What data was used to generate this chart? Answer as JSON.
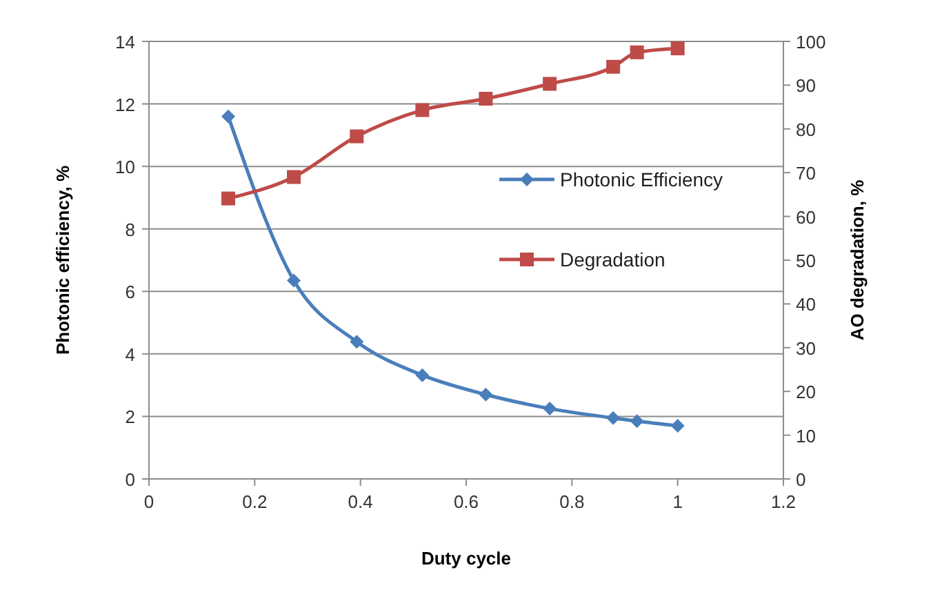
{
  "chart_data": {
    "type": "line",
    "xlabel": "Duty cycle",
    "ylabel": "Photonic efficiency, %",
    "y2label": "AO degradation, %",
    "xlim": [
      0,
      1.2
    ],
    "xticks": [
      0,
      0.2,
      0.4,
      0.6,
      0.8,
      1,
      1.2
    ],
    "ylim": [
      0,
      14
    ],
    "yticks": [
      0,
      2,
      4,
      6,
      8,
      10,
      12,
      14
    ],
    "y2lim": [
      0,
      100
    ],
    "y2ticks": [
      0,
      10,
      20,
      30,
      40,
      50,
      60,
      70,
      80,
      90,
      100
    ],
    "grid": "y",
    "legend": "right",
    "series": [
      {
        "name": "Photonic Efficiency",
        "color": "#4a7ebb",
        "marker": "diamond",
        "x": [
          0.15,
          0.274,
          0.393,
          0.517,
          0.637,
          0.758,
          0.878,
          0.923,
          1.0
        ],
        "values": [
          11.6,
          6.35,
          4.39,
          3.32,
          2.7,
          2.25,
          1.95,
          1.85,
          1.7
        ]
      },
      {
        "name": "Degradation",
        "color": "#be4b48",
        "marker": "square",
        "axis": "y2",
        "x": [
          0.15,
          0.274,
          0.393,
          0.517,
          0.637,
          0.758,
          0.878,
          0.923,
          1.0
        ],
        "values": [
          64.1,
          69.0,
          78.3,
          84.3,
          86.9,
          90.3,
          94.2,
          97.5,
          98.4
        ]
      }
    ]
  }
}
